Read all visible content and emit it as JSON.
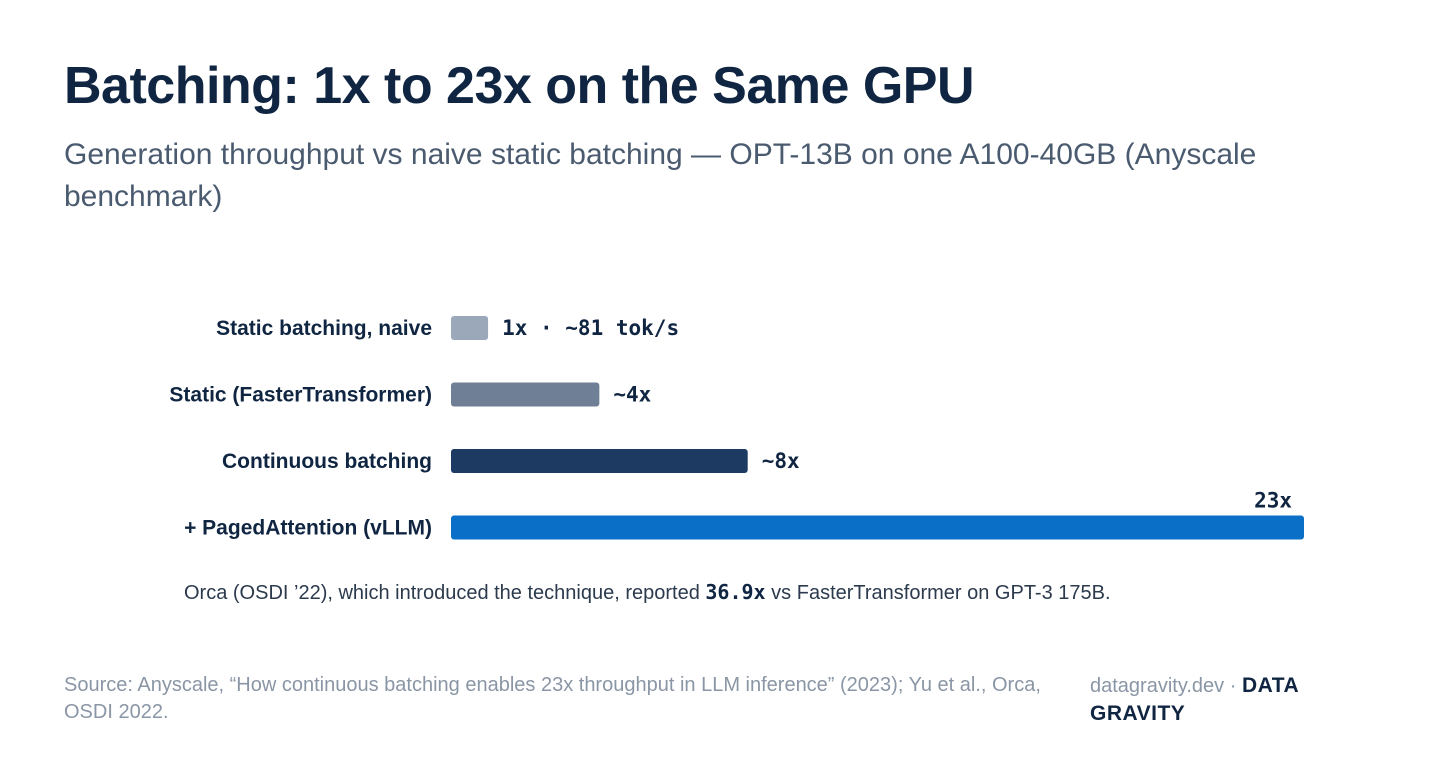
{
  "title": "Batching: 1x to 23x on the Same GPU",
  "subtitle": "Generation throughput vs naive static batching — OPT-13B on one A100-40GB (Anyscale benchmark)",
  "chart_data": {
    "type": "bar",
    "orientation": "horizontal",
    "categories": [
      "Static batching, naive",
      "Static (FasterTransformer)",
      "Continuous batching",
      "+ PagedAttention (vLLM)"
    ],
    "values": [
      1,
      4,
      8,
      23
    ],
    "value_labels": [
      "1x · ~81 tok/s",
      "~4x",
      "~8x",
      "23x"
    ],
    "colors": [
      "#9aa8ba",
      "#6e7f96",
      "#1c3a62",
      "#0a6fc7"
    ],
    "xlim": [
      0,
      23
    ],
    "grid": false,
    "legend": "none"
  },
  "note": {
    "prefix": "Orca (OSDI ’22), which introduced the technique, reported ",
    "highlight": "36.9x",
    "suffix": " vs FasterTransformer on GPT-3 175B."
  },
  "footer": {
    "source": "Source: Anyscale, “How continuous batching enables 23x throughput in LLM inference” (2023); Yu et al., Orca, OSDI 2022.",
    "site": "datagravity.dev ·",
    "brand": "DATA GRAVITY"
  }
}
